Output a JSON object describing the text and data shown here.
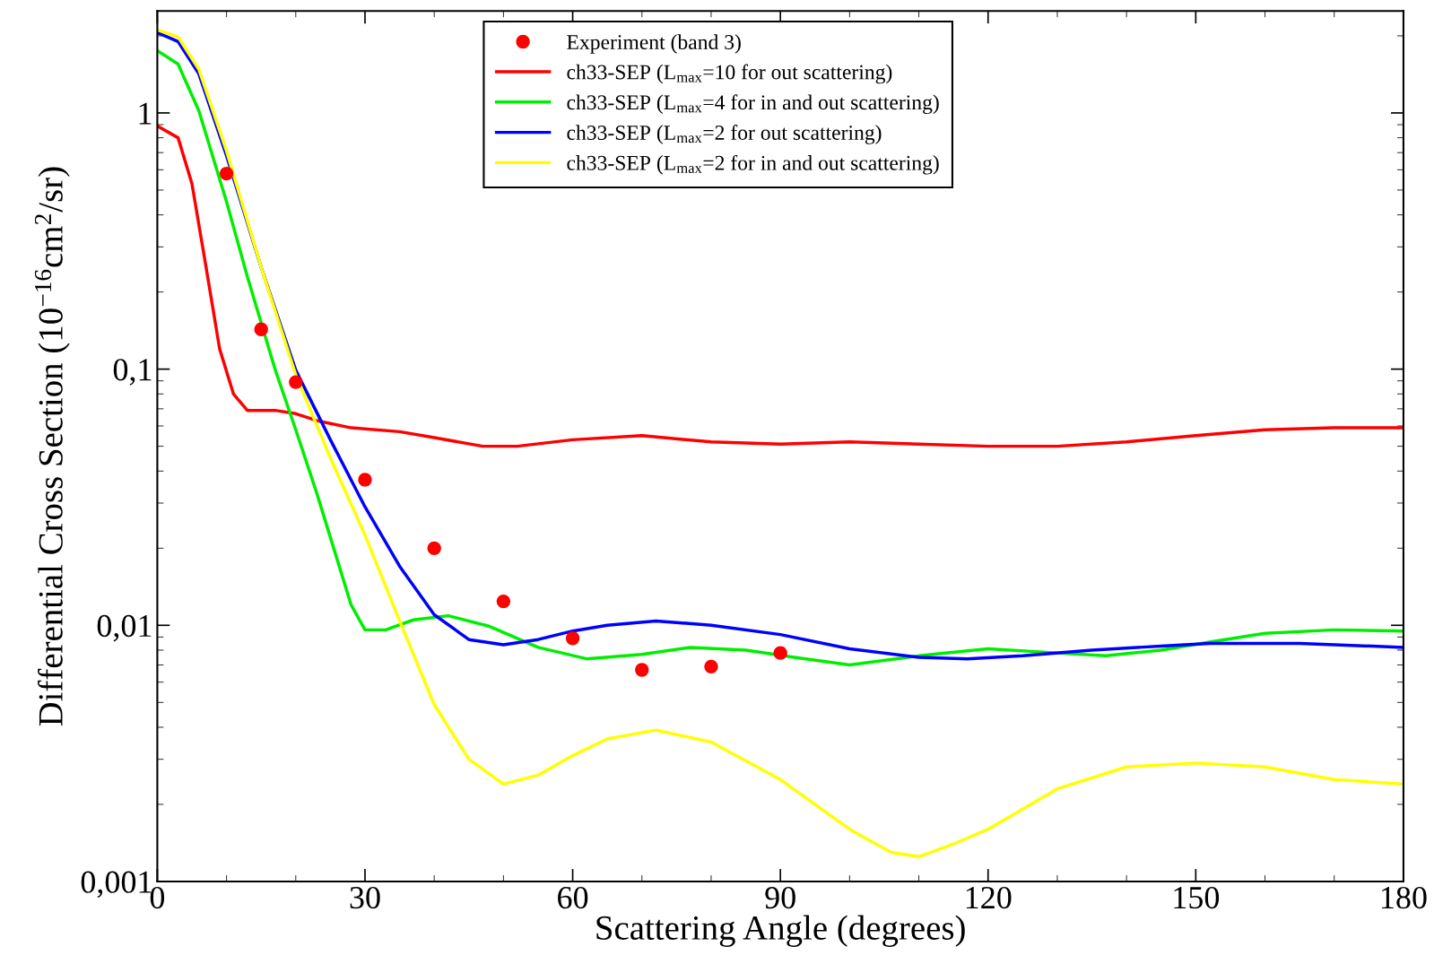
{
  "chart_data": {
    "type": "line",
    "xlabel": "Scattering Angle (degrees)",
    "ylabel": "Differential Cross Section (10$^{−16}$cm$^{2}$/sr)",
    "log": "y",
    "xlim": [
      0,
      180
    ],
    "xticks": [
      0,
      30,
      60,
      90,
      120,
      150,
      180
    ],
    "ylim": [
      0.001,
      2.5
    ],
    "yticks": [
      {
        "value": 0.001,
        "label": "0,001"
      },
      {
        "value": 0.01,
        "label": "0,01"
      },
      {
        "value": 0.1,
        "label": "0,1"
      },
      {
        "value": 1,
        "label": "1"
      }
    ],
    "grid": false,
    "legend": "top",
    "series": [
      {
        "name": "Experiment (band 3)",
        "type": "scatter",
        "marker": "circle",
        "color": "#ff0000",
        "x": [
          10,
          15,
          20,
          30,
          40,
          50,
          60,
          70,
          80,
          90
        ],
        "values": [
          0.58,
          0.143,
          0.089,
          0.037,
          0.02,
          0.0124,
          0.0089,
          0.0067,
          0.0069,
          0.0078
        ]
      },
      {
        "name": "ch33-SEP (L$_{max}$=10 for out scattering)",
        "color": "#ff0000",
        "x": [
          0,
          3,
          5,
          7,
          9,
          11,
          13,
          17,
          20,
          23,
          28,
          35,
          40,
          47,
          52,
          60,
          70,
          80,
          90,
          100,
          110,
          120,
          130,
          140,
          150,
          160,
          170,
          180
        ],
        "values": [
          0.89,
          0.8,
          0.53,
          0.254,
          0.12,
          0.08,
          0.069,
          0.069,
          0.067,
          0.063,
          0.059,
          0.057,
          0.054,
          0.05,
          0.05,
          0.053,
          0.055,
          0.052,
          0.051,
          0.052,
          0.051,
          0.05,
          0.05,
          0.052,
          0.055,
          0.058,
          0.059,
          0.059
        ]
      },
      {
        "name": "ch33-SEP (L$_{max}$=4 for in and out scattering)",
        "color": "#00ee00",
        "x": [
          0,
          3,
          6,
          10,
          13,
          17,
          20,
          23,
          26,
          28,
          30,
          33,
          37,
          42,
          48,
          55,
          62,
          70,
          77,
          85,
          92,
          100,
          110,
          120,
          130,
          137,
          145,
          152,
          160,
          170,
          180
        ],
        "values": [
          1.75,
          1.55,
          1.02,
          0.45,
          0.23,
          0.1,
          0.058,
          0.033,
          0.018,
          0.012,
          0.0096,
          0.0096,
          0.0105,
          0.0109,
          0.0099,
          0.0082,
          0.0074,
          0.0077,
          0.0082,
          0.008,
          0.0075,
          0.007,
          0.0076,
          0.0081,
          0.0078,
          0.0076,
          0.008,
          0.0086,
          0.0093,
          0.0096,
          0.0095
        ]
      },
      {
        "name": "ch33-SEP (L$_{max}$=2 for out scattering)",
        "color": "#0000ff",
        "x": [
          0,
          3,
          6,
          10,
          15,
          20,
          25,
          30,
          35,
          40,
          45,
          50,
          55,
          60,
          65,
          72,
          80,
          90,
          100,
          110,
          117,
          125,
          135,
          145,
          152,
          165,
          180
        ],
        "values": [
          2.06,
          1.9,
          1.42,
          0.68,
          0.25,
          0.099,
          0.053,
          0.029,
          0.017,
          0.011,
          0.0088,
          0.0084,
          0.0088,
          0.0095,
          0.01,
          0.0104,
          0.01,
          0.0092,
          0.0081,
          0.0075,
          0.0074,
          0.0076,
          0.008,
          0.0083,
          0.0085,
          0.0085,
          0.0082
        ]
      },
      {
        "name": "ch33-SEP (L$_{max}$=2 for in and out scattering)",
        "color": "#ffff00",
        "x": [
          0,
          3,
          6,
          10,
          15,
          20,
          25,
          30,
          35,
          40,
          45,
          50,
          55,
          60,
          65,
          72,
          80,
          90,
          100,
          106,
          110,
          115,
          120,
          130,
          140,
          150,
          160,
          170,
          180
        ],
        "values": [
          2.11,
          1.98,
          1.48,
          0.71,
          0.25,
          0.095,
          0.045,
          0.0225,
          0.0104,
          0.0049,
          0.003,
          0.0024,
          0.0026,
          0.0031,
          0.0036,
          0.0039,
          0.0035,
          0.0025,
          0.0016,
          0.0013,
          0.00125,
          0.0014,
          0.0016,
          0.0023,
          0.0028,
          0.0029,
          0.0028,
          0.0025,
          0.0024
        ]
      }
    ]
  }
}
